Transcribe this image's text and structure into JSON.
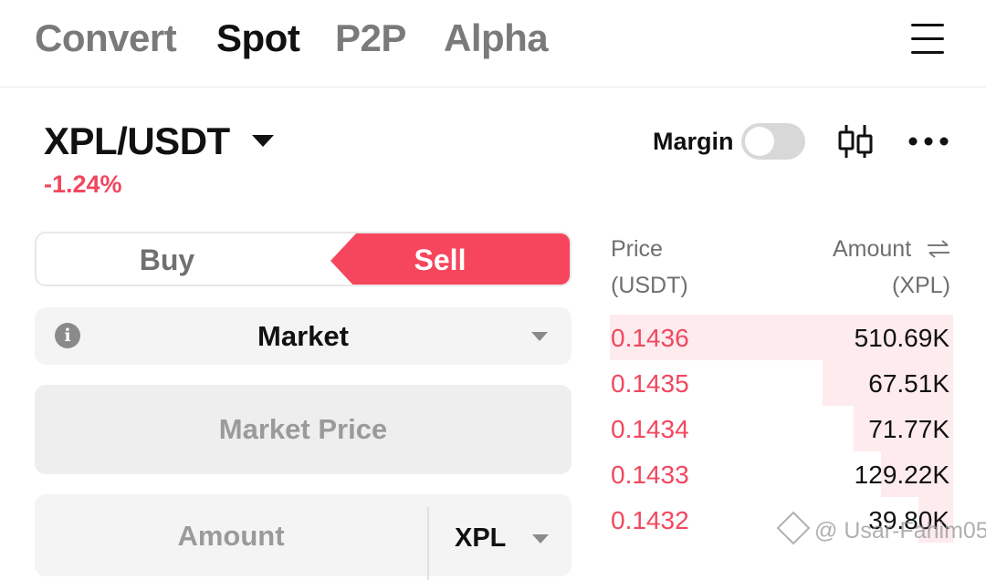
{
  "nav": {
    "tabs": [
      {
        "label": "Convert",
        "active": false
      },
      {
        "label": "Spot",
        "active": true
      },
      {
        "label": "P2P",
        "active": false
      },
      {
        "label": "Alpha",
        "active": false
      }
    ],
    "menu_icon": "hamburger-icon"
  },
  "pair": {
    "symbol": "XPL/USDT",
    "change": "-1.24%",
    "margin_label": "Margin",
    "margin_enabled": false,
    "chart_icon": "candlestick-icon",
    "more_icon": "more-horizontal-icon"
  },
  "order": {
    "buy_label": "Buy",
    "sell_label": "Sell",
    "selected_side": "Sell",
    "type_label": "Market",
    "price_placeholder": "Market Price",
    "amount_placeholder": "Amount",
    "amount_unit": "XPL"
  },
  "orderbook": {
    "price_header": "Price",
    "price_unit": "(USDT)",
    "amount_header": "Amount",
    "amount_unit": "(XPL)",
    "asks": [
      {
        "price": "0.1436",
        "amount": "510.69K",
        "depth": 1.0
      },
      {
        "price": "0.1435",
        "amount": "67.51K",
        "depth": 0.38
      },
      {
        "price": "0.1434",
        "amount": "71.77K",
        "depth": 0.29
      },
      {
        "price": "0.1433",
        "amount": "129.22K",
        "depth": 0.21
      },
      {
        "price": "0.1432",
        "amount": "39.80K",
        "depth": 0.1
      }
    ]
  },
  "colors": {
    "sell": "#f6465d",
    "ask_price": "#f0485f",
    "ask_depth": "#fdebee",
    "muted": "#7a7a7a"
  },
  "watermark": "@ Usar-Fahim05"
}
